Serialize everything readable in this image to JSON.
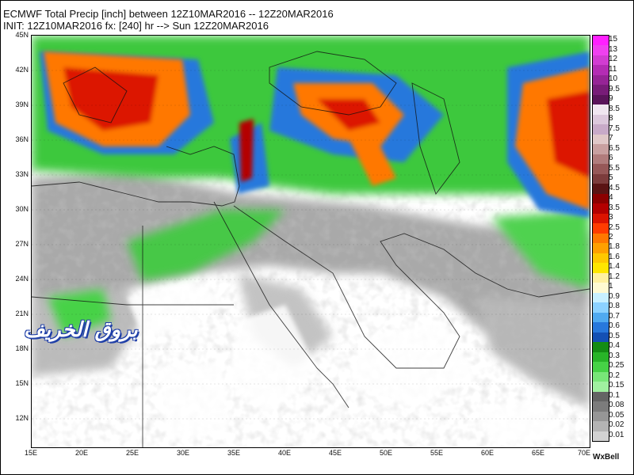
{
  "header": {
    "line1": "ECMWF Total Precip [inch] between 12Z10MAR2016 -- 12Z20MAR2016",
    "line2": "INIT: 12Z10MAR2016 fx: [240] hr --> Sun 12Z20MAR2016"
  },
  "map": {
    "lat_labels": [
      "45N",
      "42N",
      "39N",
      "36N",
      "33N",
      "30N",
      "27N",
      "24N",
      "21N",
      "18N",
      "15N",
      "12N"
    ],
    "lon_labels": [
      "15E",
      "20E",
      "25E",
      "30E",
      "35E",
      "40E",
      "45E",
      "50E",
      "55E",
      "60E",
      "65E",
      "70E"
    ],
    "lat_range": [
      10,
      45
    ],
    "lon_range": [
      15,
      70
    ]
  },
  "colorbar": {
    "labels": [
      "15",
      "13",
      "12",
      "11",
      "10",
      "9.5",
      "9",
      "8.5",
      "8",
      "7.5",
      "7",
      "6.5",
      "6",
      "5.5",
      "5",
      "4.5",
      "4",
      "3.5",
      "3",
      "2.5",
      "2",
      "1.8",
      "1.6",
      "1.4",
      "1.2",
      "1",
      "0.9",
      "0.8",
      "0.7",
      "0.6",
      "0.5",
      "0.4",
      "0.3",
      "0.25",
      "0.2",
      "0.15",
      "0.1",
      "0.08",
      "0.05",
      "0.02",
      "0.01"
    ],
    "colors": [
      "#ff20ff",
      "#f040f0",
      "#d23cd2",
      "#b42cb4",
      "#962496",
      "#781c78",
      "#5a145a",
      "#f0e6f0",
      "#dcc8dc",
      "#c8aac8",
      "#e0c8c8",
      "#c8a0a0",
      "#b07c7c",
      "#965858",
      "#7c3c3c",
      "#5a1414",
      "#8c0000",
      "#b40000",
      "#dc1400",
      "#ff3c00",
      "#ff7800",
      "#ffa000",
      "#ffc800",
      "#ffe600",
      "#fff0a0",
      "#fffad2",
      "#c8f0ff",
      "#8cd2ff",
      "#50aaf0",
      "#2878dc",
      "#1450b4",
      "#148c14",
      "#28b428",
      "#46d246",
      "#78e678",
      "#a0f0a0",
      "#646464",
      "#7c7c7c",
      "#969696",
      "#b4b4b4",
      "#d2d2d2"
    ]
  },
  "credit": "WxBell",
  "watermark": "بروق الخريف"
}
